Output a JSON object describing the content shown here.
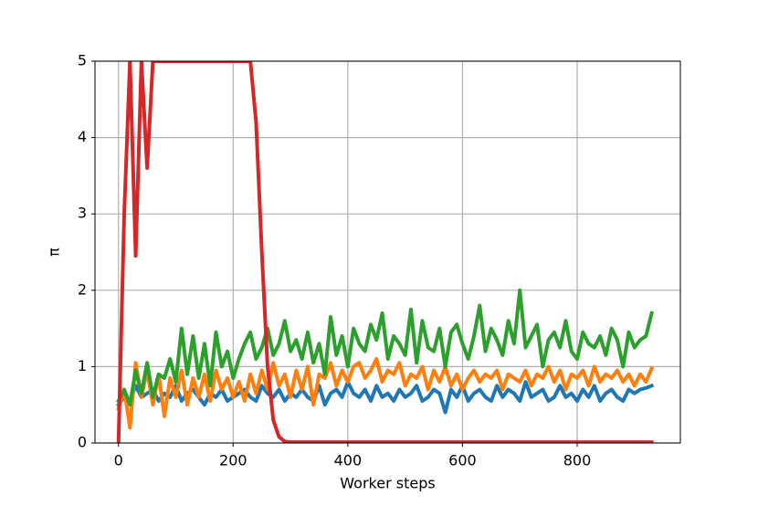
{
  "chart_data": {
    "type": "line",
    "xlabel": "Worker steps",
    "ylabel": "π",
    "x": [
      0,
      10,
      20,
      30,
      40,
      50,
      60,
      70,
      80,
      90,
      100,
      110,
      120,
      130,
      140,
      150,
      160,
      170,
      180,
      190,
      200,
      210,
      220,
      230,
      240,
      250,
      260,
      270,
      280,
      290,
      300,
      310,
      320,
      330,
      340,
      350,
      360,
      370,
      380,
      390,
      400,
      410,
      420,
      430,
      440,
      450,
      460,
      470,
      480,
      490,
      500,
      510,
      520,
      530,
      540,
      550,
      560,
      570,
      580,
      590,
      600,
      610,
      620,
      630,
      640,
      650,
      660,
      670,
      680,
      690,
      700,
      710,
      720,
      730,
      740,
      750,
      760,
      770,
      780,
      790,
      800,
      810,
      820,
      830,
      840,
      850,
      860,
      870,
      880,
      890,
      900,
      910,
      920,
      930
    ],
    "series": [
      {
        "color": "#1f77b4",
        "values": [
          0.5,
          0.6,
          0.55,
          0.75,
          0.6,
          0.65,
          0.7,
          0.55,
          0.65,
          0.6,
          0.75,
          0.55,
          0.65,
          0.7,
          0.6,
          0.5,
          0.65,
          0.6,
          0.7,
          0.55,
          0.6,
          0.65,
          0.7,
          0.6,
          0.55,
          0.75,
          0.65,
          0.6,
          0.7,
          0.55,
          0.65,
          0.6,
          0.7,
          0.6,
          0.55,
          0.75,
          0.5,
          0.65,
          0.7,
          0.6,
          0.8,
          0.65,
          0.6,
          0.7,
          0.55,
          0.75,
          0.6,
          0.65,
          0.55,
          0.7,
          0.6,
          0.65,
          0.75,
          0.55,
          0.6,
          0.7,
          0.65,
          0.4,
          0.7,
          0.6,
          0.75,
          0.55,
          0.65,
          0.7,
          0.6,
          0.55,
          0.75,
          0.6,
          0.7,
          0.65,
          0.55,
          0.8,
          0.6,
          0.65,
          0.7,
          0.55,
          0.6,
          0.75,
          0.6,
          0.65,
          0.55,
          0.7,
          0.6,
          0.75,
          0.55,
          0.65,
          0.7,
          0.6,
          0.55,
          0.7,
          0.65,
          0.7,
          0.72,
          0.75
        ]
      },
      {
        "color": "#ff7f0e",
        "values": [
          0.45,
          0.7,
          0.2,
          1.05,
          0.6,
          0.95,
          0.5,
          0.9,
          0.35,
          0.85,
          0.6,
          0.95,
          0.5,
          0.85,
          0.6,
          0.9,
          0.55,
          0.95,
          0.7,
          0.85,
          0.6,
          0.8,
          0.55,
          0.9,
          0.65,
          0.95,
          0.7,
          1.05,
          0.75,
          0.9,
          0.6,
          0.95,
          0.7,
          1.0,
          0.5,
          0.9,
          0.85,
          1.05,
          0.75,
          0.95,
          0.8,
          1.0,
          1.05,
          0.85,
          0.95,
          1.1,
          0.8,
          0.95,
          0.9,
          1.05,
          0.75,
          0.9,
          0.85,
          1.0,
          0.7,
          0.95,
          0.8,
          1.0,
          0.75,
          0.9,
          0.7,
          0.85,
          0.95,
          0.8,
          0.9,
          0.85,
          0.95,
          0.7,
          0.9,
          0.85,
          0.8,
          0.95,
          0.75,
          0.9,
          0.85,
          1.0,
          0.8,
          0.95,
          0.7,
          0.9,
          0.85,
          0.95,
          0.75,
          1.0,
          0.8,
          0.9,
          0.85,
          0.95,
          0.8,
          0.9,
          0.75,
          0.9,
          0.8,
          0.98
        ]
      },
      {
        "color": "#2ca02c",
        "values": [
          0.55,
          0.7,
          0.5,
          0.95,
          0.65,
          1.05,
          0.6,
          0.9,
          0.85,
          1.1,
          0.8,
          1.5,
          0.9,
          1.4,
          0.85,
          1.3,
          0.75,
          1.45,
          1.0,
          1.2,
          0.85,
          1.1,
          1.3,
          1.45,
          1.1,
          1.25,
          1.5,
          1.15,
          1.3,
          1.6,
          1.2,
          1.35,
          1.1,
          1.45,
          1.05,
          1.3,
          0.9,
          1.65,
          1.15,
          1.4,
          1.0,
          1.5,
          1.3,
          1.2,
          1.55,
          1.35,
          1.7,
          1.1,
          1.4,
          1.3,
          1.15,
          1.75,
          1.05,
          1.6,
          1.25,
          1.2,
          1.5,
          1.0,
          1.45,
          1.55,
          1.3,
          1.1,
          1.4,
          1.8,
          1.2,
          1.5,
          1.35,
          1.15,
          1.6,
          1.3,
          2.0,
          1.25,
          1.4,
          1.55,
          1.0,
          1.35,
          1.45,
          1.25,
          1.6,
          1.2,
          1.1,
          1.45,
          1.3,
          1.25,
          1.4,
          1.15,
          1.5,
          1.35,
          1.0,
          1.45,
          1.25,
          1.35,
          1.4,
          1.7
        ]
      },
      {
        "color": "#d62728",
        "values": [
          0,
          3,
          5,
          2.45,
          5,
          3.6,
          5,
          5,
          5,
          5,
          5,
          5,
          5,
          5,
          5,
          5,
          5,
          5,
          5,
          5,
          5,
          5,
          5,
          5,
          4.2,
          2.5,
          1.0,
          0.3,
          0.08,
          0.02,
          0.01,
          0.01,
          0.01,
          0.01,
          0.01,
          0.01,
          0.01,
          0.01,
          0.01,
          0.01,
          0.01,
          0.01,
          0.01,
          0.01,
          0.01,
          0.01,
          0.01,
          0.01,
          0.01,
          0.01,
          0.01,
          0.01,
          0.01,
          0.01,
          0.01,
          0.01,
          0.01,
          0.01,
          0.01,
          0.01,
          0.01,
          0.01,
          0.01,
          0.01,
          0.01,
          0.01,
          0.01,
          0.01,
          0.01,
          0.01,
          0.01,
          0.01,
          0.01,
          0.01,
          0.01,
          0.01,
          0.01,
          0.01,
          0.01,
          0.01,
          0.01,
          0.01,
          0.01,
          0.01,
          0.01,
          0.01,
          0.01,
          0.01,
          0.01,
          0.01,
          0.01,
          0.01,
          0.01,
          0.01
        ]
      }
    ],
    "xlim": [
      -41,
      980
    ],
    "ylim": [
      0,
      5
    ],
    "xticks": [
      0,
      200,
      400,
      600,
      800
    ],
    "yticks": [
      0,
      1,
      2,
      3,
      4,
      5
    ],
    "grid": true
  }
}
